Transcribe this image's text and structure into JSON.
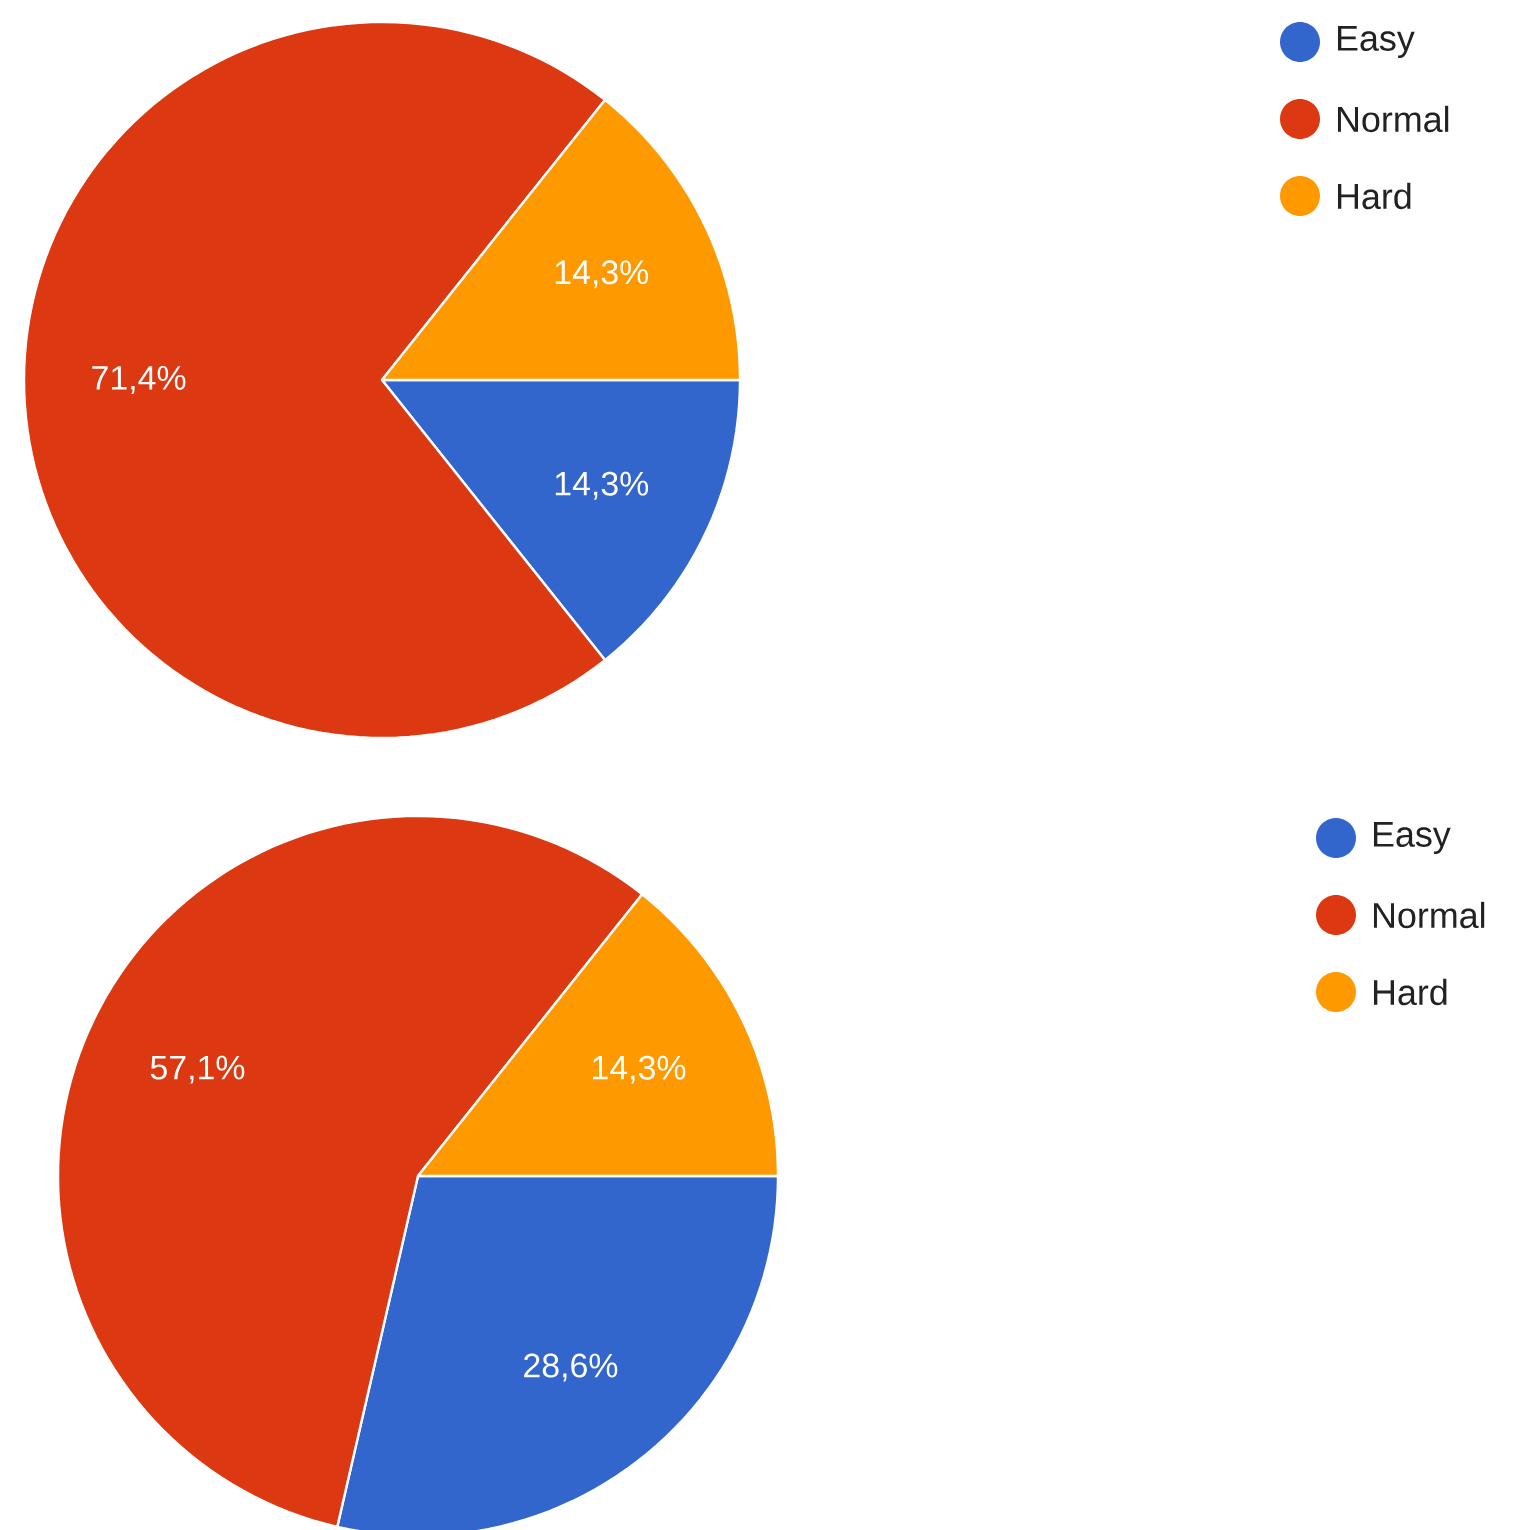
{
  "chart_data": [
    {
      "type": "pie",
      "categories": [
        "Easy",
        "Normal",
        "Hard"
      ],
      "values": [
        14.3,
        71.4,
        14.3
      ],
      "colors": [
        "#3366cc",
        "#dc3912",
        "#ff9900"
      ],
      "value_labels": [
        "14,3%",
        "71,4%",
        "14,3%"
      ],
      "legend": "top right"
    },
    {
      "type": "pie",
      "categories": [
        "Easy",
        "Normal",
        "Hard"
      ],
      "values": [
        28.6,
        57.1,
        14.3
      ],
      "colors": [
        "#3366cc",
        "#dc3912",
        "#ff9900"
      ],
      "value_labels": [
        "28,6%",
        "57,1%",
        "14,3%"
      ],
      "legend": "top right"
    }
  ]
}
